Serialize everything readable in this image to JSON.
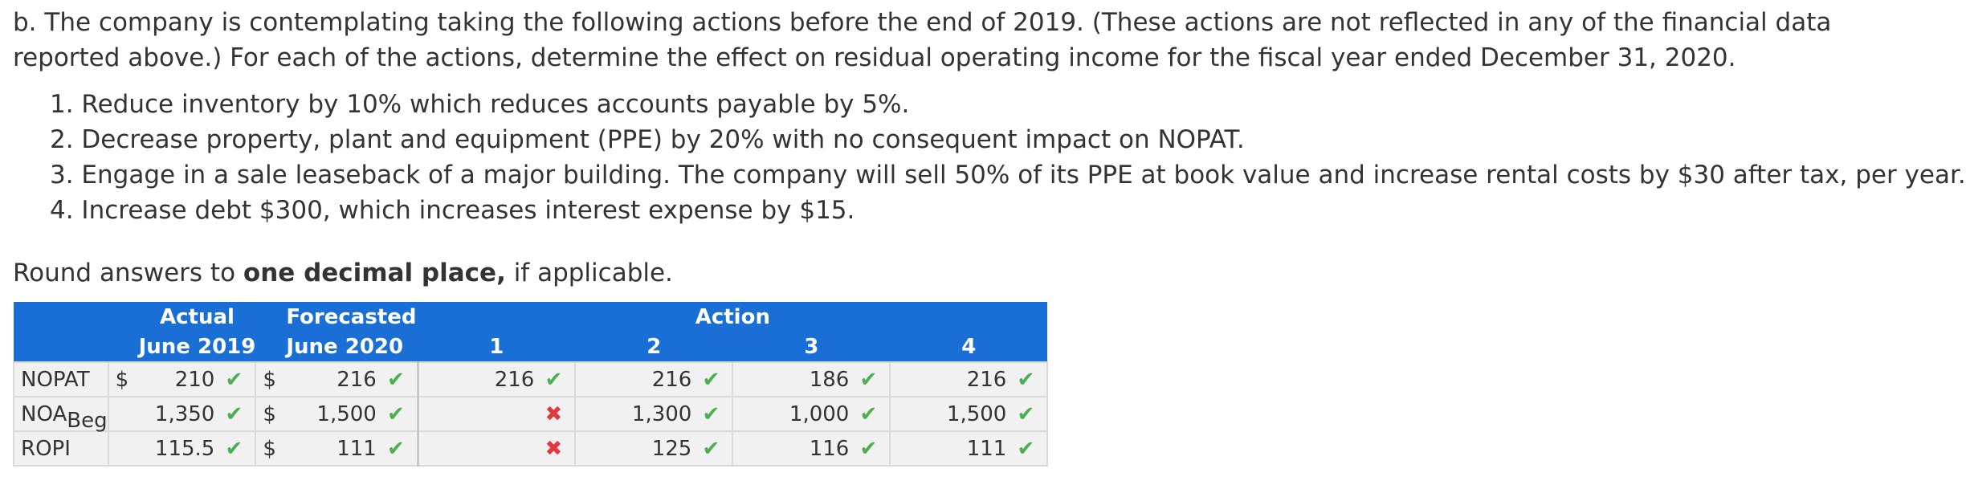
{
  "intro": "b. The company is contemplating taking the following actions before the end of 2019. (These actions are not reflected in any of the financial data reported above.) For each of the actions, determine the effect on residual operating income for the fiscal year ended December 31, 2020.",
  "actions": [
    "1. Reduce inventory by 10% which reduces accounts payable by 5%.",
    "2. Decrease property, plant and equipment (PPE) by 20% with no consequent impact on NOPAT.",
    "3. Engage in a sale leaseback of a major building. The company will sell 50% of its PPE at book value and increase rental costs by $30 after tax, per year.",
    "4. Increase debt $300, which increases interest expense by $15."
  ],
  "rounding": {
    "prefix": "Round answers to ",
    "bold": "one decimal place,",
    "suffix": " if applicable."
  },
  "table": {
    "header": {
      "actual_l1": "Actual",
      "actual_l2": "June 2019",
      "forecast_l1": "Forecasted",
      "forecast_l2": "June 2020",
      "action": "Action",
      "cols": [
        "1",
        "2",
        "3",
        "4"
      ]
    },
    "rows": [
      {
        "label": "NOPAT",
        "label_sub": "",
        "actual_dollar": "$",
        "actual": "210",
        "actual_mark": "check",
        "forecast_dollar": "$",
        "forecast": "216",
        "forecast_mark": "check",
        "a1": "216",
        "a1_mark": "check",
        "a2": "216",
        "a2_mark": "check",
        "a3": "186",
        "a3_mark": "check",
        "a4": "216",
        "a4_mark": "check"
      },
      {
        "label": "NOA",
        "label_sub": "Beg",
        "actual_dollar": "",
        "actual": "1,350",
        "actual_mark": "check",
        "forecast_dollar": "$",
        "forecast": "1,500",
        "forecast_mark": "check",
        "a1": "",
        "a1_mark": "cross",
        "a2": "1,300",
        "a2_mark": "check",
        "a3": "1,000",
        "a3_mark": "check",
        "a4": "1,500",
        "a4_mark": "check"
      },
      {
        "label": "ROPI",
        "label_sub": "",
        "actual_dollar": "",
        "actual": "115.5",
        "actual_mark": "check",
        "forecast_dollar": "$",
        "forecast": "111",
        "forecast_mark": "check",
        "a1": "",
        "a1_mark": "cross",
        "a2": "125",
        "a2_mark": "check",
        "a3": "116",
        "a3_mark": "check",
        "a4": "111",
        "a4_mark": "check"
      }
    ]
  }
}
